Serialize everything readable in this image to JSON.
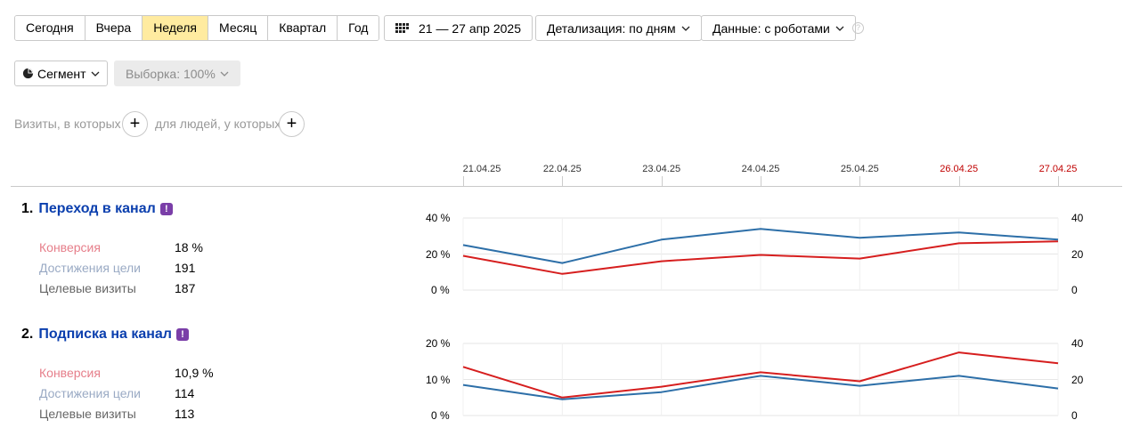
{
  "toolbar": {
    "periods": [
      "Сегодня",
      "Вчера",
      "Неделя",
      "Месяц",
      "Квартал",
      "Год"
    ],
    "active_period": "Неделя",
    "date_range": "21 — 27 апр 2025",
    "detail": "Детализация: по дням",
    "data_source": "Данные: с роботами",
    "help": "?"
  },
  "segment": {
    "label": "Сегмент",
    "sample": "Выборка: 100%"
  },
  "filters": {
    "visits_label": "Визиты, в которых",
    "people_label": "для людей, у которых",
    "plus": "+"
  },
  "dates": [
    "21.04.25",
    "22.04.25",
    "23.04.25",
    "24.04.25",
    "25.04.25",
    "26.04.25",
    "27.04.25"
  ],
  "weekend_dates": [
    "26.04.25",
    "27.04.25"
  ],
  "colors": {
    "blue": "#2d6fa8",
    "red": "#d61e1e",
    "accent": "#ffeba0",
    "link": "#0b3fae"
  },
  "goals": [
    {
      "num": "1.",
      "name": "Переход в канал",
      "badge": "!",
      "metrics": [
        {
          "label": "Конверсия",
          "value": "18 %"
        },
        {
          "label": "Достижения цели",
          "value": "191"
        },
        {
          "label": "Целевые визиты",
          "value": "187"
        }
      ],
      "left_axis": [
        "40 %",
        "20 %",
        "0 %"
      ],
      "right_axis": [
        "40",
        "20",
        "0"
      ]
    },
    {
      "num": "2.",
      "name": "Подписка на канал",
      "badge": "!",
      "metrics": [
        {
          "label": "Конверсия",
          "value": "10,9 %"
        },
        {
          "label": "Достижения цели",
          "value": "114"
        },
        {
          "label": "Целевые визиты",
          "value": "113"
        }
      ],
      "left_axis": [
        "20 %",
        "10 %",
        "0 %"
      ],
      "right_axis": [
        "40",
        "20",
        "0"
      ]
    }
  ],
  "chart_data": [
    {
      "type": "line",
      "x": [
        "21.04.25",
        "22.04.25",
        "23.04.25",
        "24.04.25",
        "25.04.25",
        "26.04.25",
        "27.04.25"
      ],
      "ylim_left": [
        0,
        40
      ],
      "ylim_right": [
        0,
        40
      ],
      "series": [
        {
          "color": "#d61e1e",
          "axis": "left",
          "values": [
            19,
            9,
            16,
            19.5,
            17.5,
            26,
            27
          ]
        },
        {
          "color": "#2d6fa8",
          "axis": "right",
          "values": [
            25,
            15,
            28,
            34,
            29,
            32,
            28
          ]
        }
      ]
    },
    {
      "type": "line",
      "x": [
        "21.04.25",
        "22.04.25",
        "23.04.25",
        "24.04.25",
        "25.04.25",
        "26.04.25",
        "27.04.25"
      ],
      "ylim_left": [
        0,
        20
      ],
      "ylim_right": [
        0,
        40
      ],
      "series": [
        {
          "color": "#d61e1e",
          "axis": "left",
          "values": [
            13.5,
            5,
            8,
            12,
            9.5,
            17.5,
            14.5
          ]
        },
        {
          "color": "#2d6fa8",
          "axis": "right",
          "values": [
            17,
            9,
            13,
            22,
            16.5,
            22,
            15
          ]
        }
      ]
    }
  ]
}
